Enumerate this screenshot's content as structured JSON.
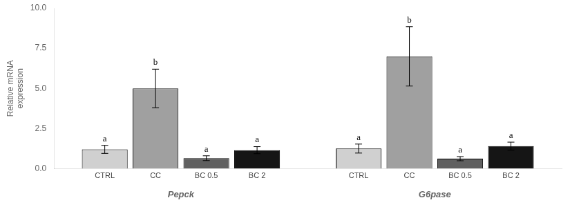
{
  "chart_data": {
    "type": "bar",
    "categories": [
      "Pepck",
      "G6pase"
    ],
    "series": [
      {
        "name": "CTRL",
        "color": "#d0d0d0",
        "values": [
          1.2,
          1.25
        ],
        "errors": [
          0.25,
          0.28
        ],
        "sig_labels": [
          "a",
          "a"
        ]
      },
      {
        "name": "CC",
        "color": "#a0a0a0",
        "values": [
          5.0,
          7.0
        ],
        "errors": [
          1.2,
          1.85
        ],
        "sig_labels": [
          "b",
          "b"
        ]
      },
      {
        "name": "BC 0.5",
        "color": "#606060",
        "values": [
          0.65,
          0.62
        ],
        "errors": [
          0.15,
          0.13
        ],
        "sig_labels": [
          "a",
          "a"
        ]
      },
      {
        "name": "BC 2",
        "color": "#151515",
        "values": [
          1.15,
          1.4
        ],
        "errors": [
          0.22,
          0.25
        ],
        "sig_labels": [
          "a",
          "a"
        ]
      }
    ],
    "ylabel": "Relative mRNA\nexpression",
    "ylim": [
      0,
      10.0
    ],
    "yticks": [
      {
        "value": 0,
        "label": "0.0"
      },
      2.5,
      {
        "value": 5,
        "label": "5.0"
      },
      7.5,
      {
        "value": 10,
        "label": "10.0"
      }
    ],
    "grid": false
  }
}
